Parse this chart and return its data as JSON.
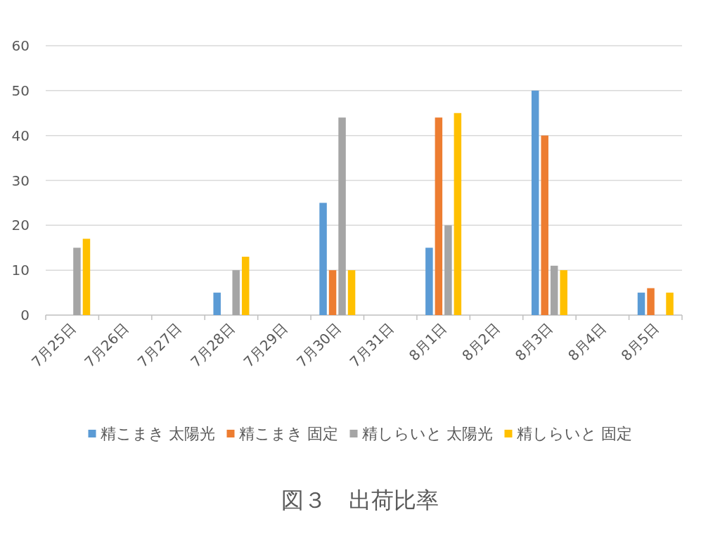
{
  "chart_data": {
    "type": "bar",
    "title": "図３　出荷比率",
    "categories": [
      "7月25日",
      "7月26日",
      "7月27日",
      "7月28日",
      "7月29日",
      "7月30日",
      "7月31日",
      "8月1日",
      "8月2日",
      "8月3日",
      "8月4日",
      "8月5日"
    ],
    "series": [
      {
        "name": "精こまき 太陽光",
        "color": "#5b9bd5",
        "values": [
          null,
          null,
          null,
          5,
          null,
          25,
          null,
          15,
          null,
          50,
          null,
          5
        ]
      },
      {
        "name": "精こまき 固定",
        "color": "#ed7d31",
        "values": [
          null,
          null,
          null,
          null,
          null,
          10,
          null,
          44,
          null,
          40,
          null,
          6
        ]
      },
      {
        "name": "精しらいと 太陽光",
        "color": "#a5a5a5",
        "values": [
          15,
          null,
          null,
          10,
          null,
          44,
          null,
          20,
          null,
          11,
          null,
          null
        ]
      },
      {
        "name": "精しらいと 固定",
        "color": "#ffc000",
        "values": [
          17,
          null,
          null,
          13,
          null,
          10,
          null,
          45,
          null,
          10,
          null,
          5
        ]
      }
    ],
    "ylim": [
      0,
      60
    ],
    "yticks": [
      0,
      10,
      20,
      30,
      40,
      50,
      60
    ],
    "grid": "y",
    "legend": "bottom"
  }
}
